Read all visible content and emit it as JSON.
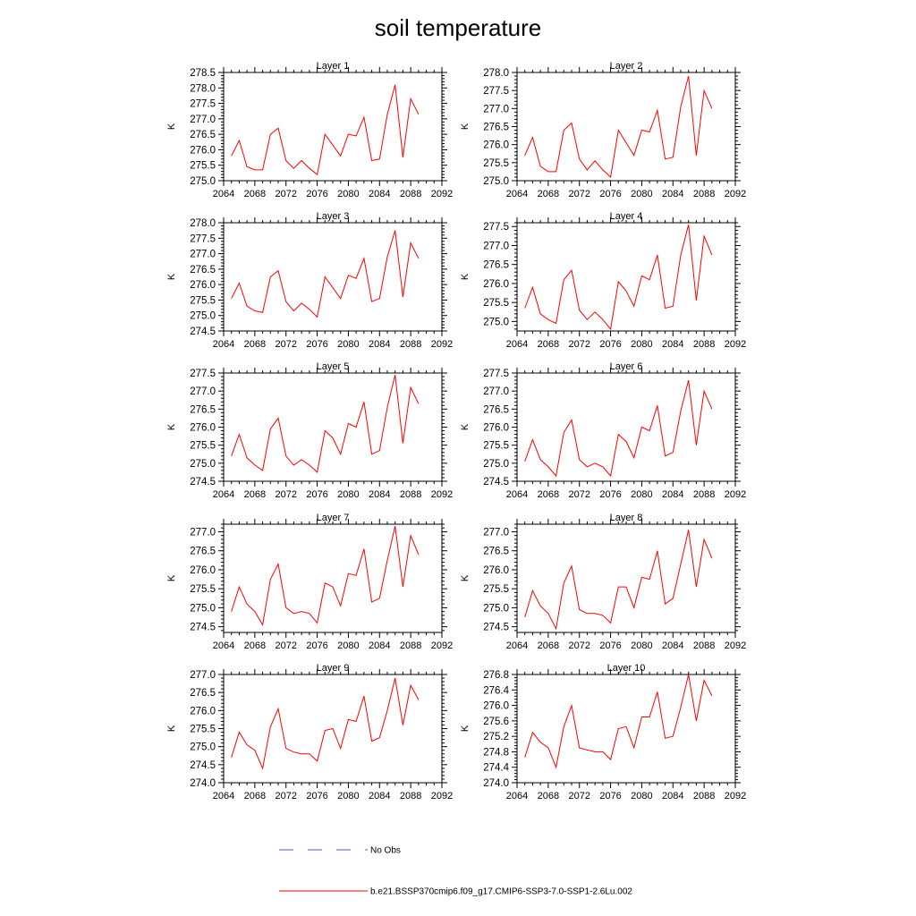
{
  "title": "soil temperature",
  "legend": {
    "no_obs_label": "No Obs",
    "no_obs_color": "#5a5acb",
    "series_label": "b.e21.BSSP370cmip6.f09_g17.CMIP6-SSP3-7.0-SSP1-2.6Lu.002",
    "series_color": "#ff0000"
  },
  "chart_data": [
    {
      "type": "line",
      "title": "Layer 1",
      "ylabel": "K",
      "xlim": [
        2064,
        2092
      ],
      "xticks": [
        "2064",
        "2068",
        "2072",
        "2076",
        "2080",
        "2084",
        "2088",
        "2092"
      ],
      "ylim": [
        275.0,
        278.5
      ],
      "yticks": [
        "275.0",
        "275.5",
        "276.0",
        "276.5",
        "277.0",
        "277.5",
        "278.0",
        "278.5"
      ],
      "x": [
        2065,
        2066,
        2067,
        2068,
        2069,
        2070,
        2071,
        2072,
        2073,
        2074,
        2075,
        2076,
        2077,
        2078,
        2079,
        2080,
        2081,
        2082,
        2083,
        2084,
        2085,
        2086,
        2087,
        2088,
        2089
      ],
      "values": [
        275.8,
        276.3,
        275.45,
        275.35,
        275.35,
        276.5,
        276.7,
        275.65,
        275.4,
        275.65,
        275.4,
        275.2,
        276.5,
        276.15,
        275.8,
        276.5,
        276.45,
        277.05,
        275.65,
        275.7,
        277.15,
        278.1,
        275.75,
        277.65,
        277.15
      ]
    },
    {
      "type": "line",
      "title": "Layer 2",
      "ylabel": "K",
      "xlim": [
        2064,
        2092
      ],
      "xticks": [
        "2064",
        "2068",
        "2072",
        "2076",
        "2080",
        "2084",
        "2088",
        "2092"
      ],
      "ylim": [
        275.0,
        278.0
      ],
      "yticks": [
        "275.0",
        "275.5",
        "276.0",
        "276.5",
        "277.0",
        "277.5",
        "278.0"
      ],
      "x": [
        2065,
        2066,
        2067,
        2068,
        2069,
        2070,
        2071,
        2072,
        2073,
        2074,
        2075,
        2076,
        2077,
        2078,
        2079,
        2080,
        2081,
        2082,
        2083,
        2084,
        2085,
        2086,
        2087,
        2088,
        2089
      ],
      "values": [
        275.7,
        276.2,
        275.4,
        275.25,
        275.25,
        276.4,
        276.6,
        275.6,
        275.3,
        275.55,
        275.3,
        275.1,
        276.4,
        276.05,
        275.7,
        276.4,
        276.35,
        276.95,
        275.6,
        275.65,
        277.05,
        277.9,
        275.7,
        277.5,
        277.0
      ]
    },
    {
      "type": "line",
      "title": "Layer 3",
      "ylabel": "K",
      "xlim": [
        2064,
        2092
      ],
      "xticks": [
        "2064",
        "2068",
        "2072",
        "2076",
        "2080",
        "2084",
        "2088",
        "2092"
      ],
      "ylim": [
        274.5,
        278.0
      ],
      "yticks": [
        "274.5",
        "275.0",
        "275.5",
        "276.0",
        "276.5",
        "277.0",
        "277.5",
        "278.0"
      ],
      "x": [
        2065,
        2066,
        2067,
        2068,
        2069,
        2070,
        2071,
        2072,
        2073,
        2074,
        2075,
        2076,
        2077,
        2078,
        2079,
        2080,
        2081,
        2082,
        2083,
        2084,
        2085,
        2086,
        2087,
        2088,
        2089
      ],
      "values": [
        275.55,
        276.05,
        275.3,
        275.15,
        275.1,
        276.25,
        276.45,
        275.45,
        275.15,
        275.4,
        275.2,
        274.95,
        276.25,
        275.9,
        275.55,
        276.3,
        276.2,
        276.85,
        275.45,
        275.55,
        276.9,
        277.75,
        275.6,
        277.35,
        276.85
      ]
    },
    {
      "type": "line",
      "title": "Layer 4",
      "ylabel": "K",
      "xlim": [
        2064,
        2092
      ],
      "xticks": [
        "2064",
        "2068",
        "2072",
        "2076",
        "2080",
        "2084",
        "2088",
        "2092"
      ],
      "ylim": [
        274.75,
        277.6
      ],
      "yticks": [
        "275.0",
        "275.5",
        "276.0",
        "276.5",
        "277.0",
        "277.5"
      ],
      "x": [
        2065,
        2066,
        2067,
        2068,
        2069,
        2070,
        2071,
        2072,
        2073,
        2074,
        2075,
        2076,
        2077,
        2078,
        2079,
        2080,
        2081,
        2082,
        2083,
        2084,
        2085,
        2086,
        2087,
        2088,
        2089
      ],
      "values": [
        275.35,
        275.9,
        275.2,
        275.05,
        274.95,
        276.1,
        276.35,
        275.3,
        275.05,
        275.25,
        275.05,
        274.8,
        276.05,
        275.8,
        275.4,
        276.2,
        276.1,
        276.75,
        275.35,
        275.4,
        276.75,
        277.55,
        275.55,
        277.25,
        276.75
      ]
    },
    {
      "type": "line",
      "title": "Layer 5",
      "ylabel": "K",
      "xlim": [
        2064,
        2092
      ],
      "xticks": [
        "2064",
        "2068",
        "2072",
        "2076",
        "2080",
        "2084",
        "2088",
        "2092"
      ],
      "ylim": [
        274.5,
        277.5
      ],
      "yticks": [
        "274.5",
        "275.0",
        "275.5",
        "276.0",
        "276.5",
        "277.0",
        "277.5"
      ],
      "x": [
        2065,
        2066,
        2067,
        2068,
        2069,
        2070,
        2071,
        2072,
        2073,
        2074,
        2075,
        2076,
        2077,
        2078,
        2079,
        2080,
        2081,
        2082,
        2083,
        2084,
        2085,
        2086,
        2087,
        2088,
        2089
      ],
      "values": [
        275.2,
        275.8,
        275.15,
        274.95,
        274.8,
        275.95,
        276.25,
        275.2,
        274.95,
        275.1,
        274.95,
        274.75,
        275.9,
        275.7,
        275.25,
        276.1,
        276.0,
        276.7,
        275.25,
        275.35,
        276.55,
        277.45,
        275.55,
        277.1,
        276.65
      ]
    },
    {
      "type": "line",
      "title": "Layer 6",
      "ylabel": "K",
      "xlim": [
        2064,
        2092
      ],
      "xticks": [
        "2064",
        "2068",
        "2072",
        "2076",
        "2080",
        "2084",
        "2088",
        "2092"
      ],
      "ylim": [
        274.5,
        277.5
      ],
      "yticks": [
        "274.5",
        "275.0",
        "275.5",
        "276.0",
        "276.5",
        "277.0",
        "277.5"
      ],
      "x": [
        2065,
        2066,
        2067,
        2068,
        2069,
        2070,
        2071,
        2072,
        2073,
        2074,
        2075,
        2076,
        2077,
        2078,
        2079,
        2080,
        2081,
        2082,
        2083,
        2084,
        2085,
        2086,
        2087,
        2088,
        2089
      ],
      "values": [
        275.05,
        275.65,
        275.1,
        274.9,
        274.65,
        275.85,
        276.2,
        275.1,
        274.9,
        275.0,
        274.9,
        274.65,
        275.8,
        275.6,
        275.15,
        276.0,
        275.9,
        276.6,
        275.2,
        275.3,
        276.45,
        277.3,
        275.5,
        277.0,
        276.5
      ]
    },
    {
      "type": "line",
      "title": "Layer 7",
      "ylabel": "K",
      "xlim": [
        2064,
        2092
      ],
      "xticks": [
        "2064",
        "2068",
        "2072",
        "2076",
        "2080",
        "2084",
        "2088",
        "2092"
      ],
      "ylim": [
        274.35,
        277.2
      ],
      "yticks": [
        "274.5",
        "275.0",
        "275.5",
        "276.0",
        "276.5",
        "277.0"
      ],
      "x": [
        2065,
        2066,
        2067,
        2068,
        2069,
        2070,
        2071,
        2072,
        2073,
        2074,
        2075,
        2076,
        2077,
        2078,
        2079,
        2080,
        2081,
        2082,
        2083,
        2084,
        2085,
        2086,
        2087,
        2088,
        2089
      ],
      "values": [
        274.9,
        275.55,
        275.1,
        274.9,
        274.55,
        275.75,
        276.15,
        275.0,
        274.85,
        274.9,
        274.85,
        274.6,
        275.65,
        275.55,
        275.05,
        275.9,
        275.85,
        276.55,
        275.15,
        275.25,
        276.25,
        277.15,
        275.55,
        276.9,
        276.4
      ]
    },
    {
      "type": "line",
      "title": "Layer 8",
      "ylabel": "K",
      "xlim": [
        2064,
        2092
      ],
      "xticks": [
        "2064",
        "2068",
        "2072",
        "2076",
        "2080",
        "2084",
        "2088",
        "2092"
      ],
      "ylim": [
        274.35,
        277.2
      ],
      "yticks": [
        "274.5",
        "275.0",
        "275.5",
        "276.0",
        "276.5",
        "277.0"
      ],
      "x": [
        2065,
        2066,
        2067,
        2068,
        2069,
        2070,
        2071,
        2072,
        2073,
        2074,
        2075,
        2076,
        2077,
        2078,
        2079,
        2080,
        2081,
        2082,
        2083,
        2084,
        2085,
        2086,
        2087,
        2088,
        2089
      ],
      "values": [
        274.75,
        275.45,
        275.05,
        274.85,
        274.45,
        275.65,
        276.1,
        274.95,
        274.85,
        274.85,
        274.8,
        274.6,
        275.55,
        275.55,
        275.0,
        275.8,
        275.75,
        276.5,
        275.1,
        275.25,
        276.15,
        277.05,
        275.55,
        276.8,
        276.3
      ]
    },
    {
      "type": "line",
      "title": "Layer 9",
      "ylabel": "K",
      "xlim": [
        2064,
        2092
      ],
      "xticks": [
        "2064",
        "2068",
        "2072",
        "2076",
        "2080",
        "2084",
        "2088",
        "2092"
      ],
      "ylim": [
        274.0,
        277.0
      ],
      "yticks": [
        "274.0",
        "274.5",
        "275.0",
        "275.5",
        "276.0",
        "276.5",
        "277.0"
      ],
      "x": [
        2065,
        2066,
        2067,
        2068,
        2069,
        2070,
        2071,
        2072,
        2073,
        2074,
        2075,
        2076,
        2077,
        2078,
        2079,
        2080,
        2081,
        2082,
        2083,
        2084,
        2085,
        2086,
        2087,
        2088,
        2089
      ],
      "values": [
        274.7,
        275.4,
        275.05,
        274.9,
        274.4,
        275.55,
        276.05,
        274.95,
        274.85,
        274.8,
        274.8,
        274.6,
        275.45,
        275.5,
        274.95,
        275.75,
        275.7,
        276.4,
        275.15,
        275.25,
        276.0,
        276.9,
        275.6,
        276.7,
        276.3
      ]
    },
    {
      "type": "line",
      "title": "Layer 10",
      "ylabel": "K",
      "xlim": [
        2064,
        2092
      ],
      "xticks": [
        "2064",
        "2068",
        "2072",
        "2076",
        "2080",
        "2084",
        "2088",
        "2092"
      ],
      "ylim": [
        274.0,
        276.8
      ],
      "yticks": [
        "274.0",
        "274.4",
        "274.8",
        "275.2",
        "275.6",
        "276.0",
        "276.4",
        "276.8"
      ],
      "x": [
        2065,
        2066,
        2067,
        2068,
        2069,
        2070,
        2071,
        2072,
        2073,
        2074,
        2075,
        2076,
        2077,
        2078,
        2079,
        2080,
        2081,
        2082,
        2083,
        2084,
        2085,
        2086,
        2087,
        2088,
        2089
      ],
      "values": [
        274.65,
        275.3,
        275.05,
        274.9,
        274.4,
        275.45,
        276.0,
        274.9,
        274.85,
        274.8,
        274.8,
        274.6,
        275.4,
        275.45,
        274.9,
        275.7,
        275.7,
        276.35,
        275.15,
        275.2,
        275.95,
        276.8,
        275.6,
        276.65,
        276.25
      ]
    }
  ]
}
